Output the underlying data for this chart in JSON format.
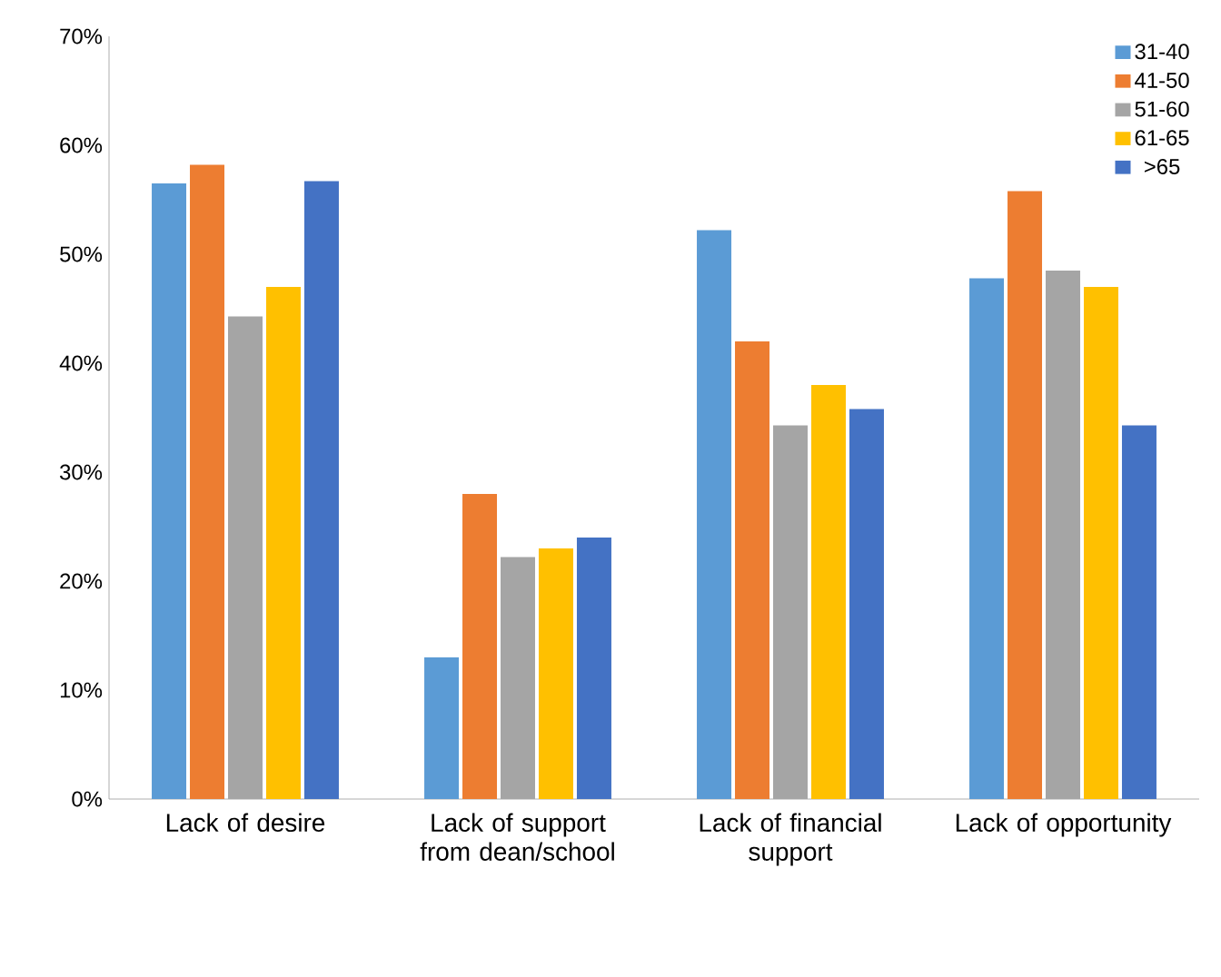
{
  "chart_data": {
    "type": "bar",
    "categories": [
      "Lack of desire",
      "Lack of support from dean/school",
      "Lack of financial support",
      "Lack of opportunity"
    ],
    "series": [
      {
        "name": "31-40",
        "color": "#5b9bd5",
        "values": [
          56.5,
          13,
          52.2,
          47.8
        ]
      },
      {
        "name": "41-50",
        "color": "#ed7d31",
        "values": [
          58.2,
          28,
          42,
          55.8
        ]
      },
      {
        "name": "51-60",
        "color": "#a5a5a5",
        "values": [
          44.3,
          22.2,
          34.3,
          48.5
        ]
      },
      {
        "name": "61-65",
        "color": "#ffc000",
        "values": [
          47,
          23,
          38,
          47
        ]
      },
      {
        "name": ">65",
        "color": "#4472c4",
        "values": [
          56.7,
          24,
          35.8,
          34.3
        ]
      }
    ],
    "ylim": [
      0,
      70
    ],
    "yticks": [
      {
        "value": 0,
        "label": "0%"
      },
      {
        "value": 10,
        "label": "10%"
      },
      {
        "value": 20,
        "label": "20%"
      },
      {
        "value": 30,
        "label": "30%"
      },
      {
        "value": 40,
        "label": "40%"
      },
      {
        "value": 50,
        "label": "50%"
      },
      {
        "value": 60,
        "label": "60%"
      },
      {
        "value": 70,
        "label": "70%"
      }
    ],
    "legend": "top right"
  }
}
